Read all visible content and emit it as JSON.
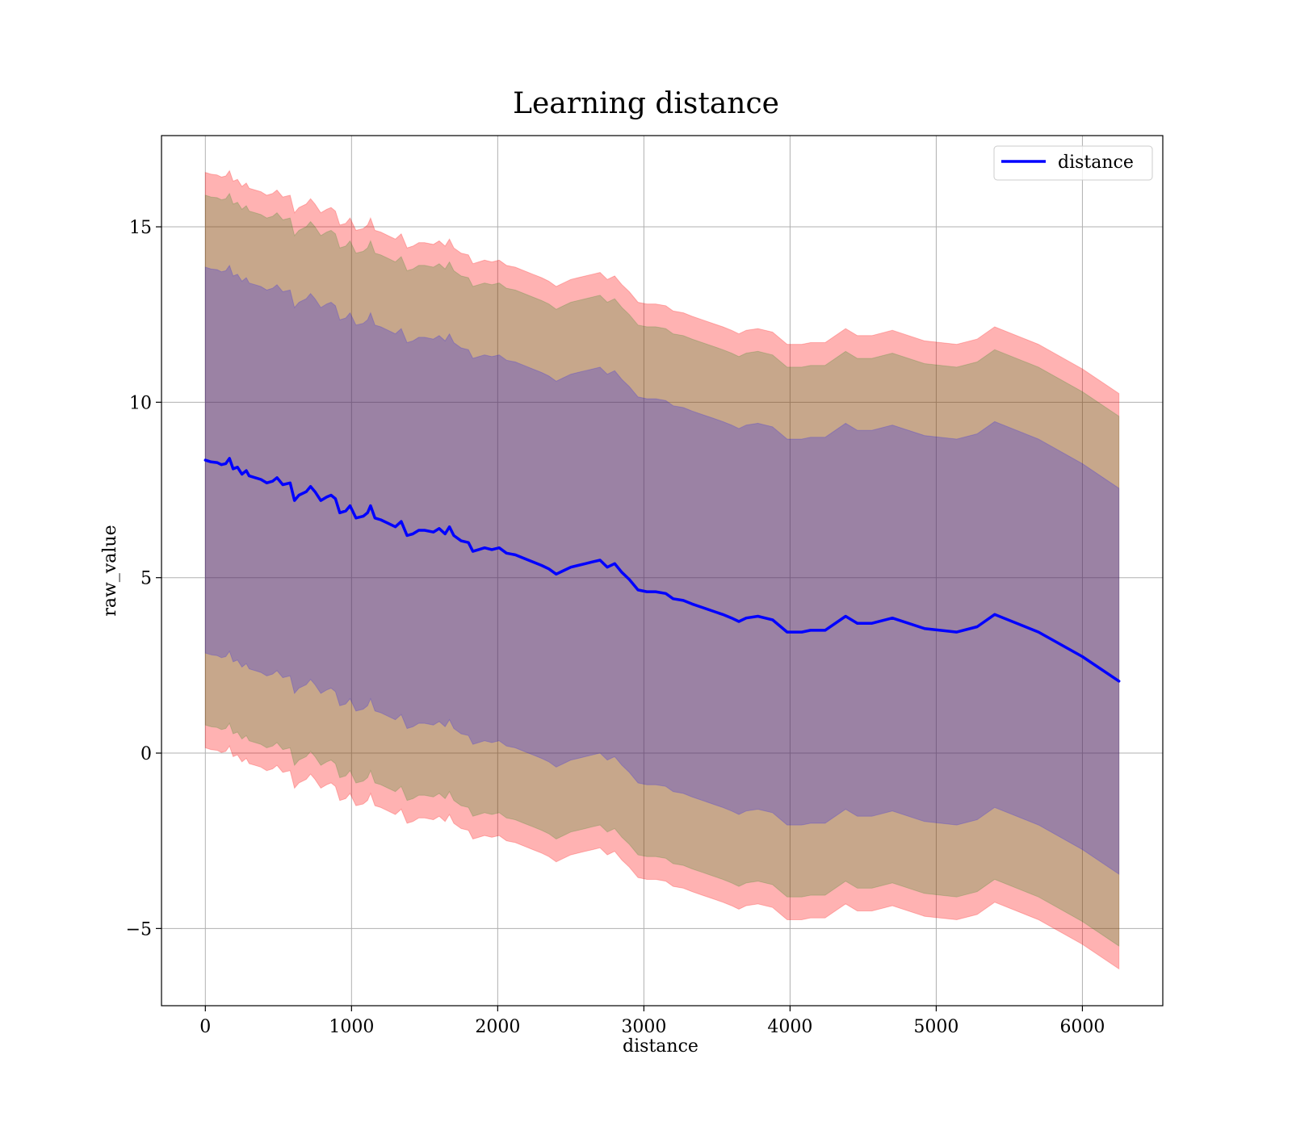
{
  "chart_data": {
    "type": "line",
    "title": "Learning distance",
    "xlabel": "distance",
    "ylabel": "raw_value",
    "xlim": [
      -300,
      6550
    ],
    "ylim": [
      -7.2,
      17.6
    ],
    "xticks": [
      0,
      1000,
      2000,
      3000,
      4000,
      5000,
      6000
    ],
    "yticks": [
      -5,
      0,
      5,
      10,
      15
    ],
    "xtick_labels": [
      "0",
      "1000",
      "2000",
      "3000",
      "4000",
      "5000",
      "6000"
    ],
    "ytick_labels": [
      "−5",
      "0",
      "5",
      "10",
      "15"
    ],
    "grid": true,
    "legend_position": "top-right",
    "series": [
      {
        "name": "distance",
        "color": "#0000ff",
        "points": [
          [
            0,
            8.35
          ],
          [
            40,
            8.3
          ],
          [
            80,
            8.28
          ],
          [
            110,
            8.22
          ],
          [
            140,
            8.25
          ],
          [
            165,
            8.4
          ],
          [
            190,
            8.1
          ],
          [
            220,
            8.15
          ],
          [
            250,
            7.95
          ],
          [
            280,
            8.05
          ],
          [
            300,
            7.9
          ],
          [
            340,
            7.85
          ],
          [
            380,
            7.8
          ],
          [
            420,
            7.7
          ],
          [
            460,
            7.75
          ],
          [
            490,
            7.85
          ],
          [
            530,
            7.65
          ],
          [
            580,
            7.7
          ],
          [
            610,
            7.2
          ],
          [
            640,
            7.35
          ],
          [
            690,
            7.45
          ],
          [
            720,
            7.6
          ],
          [
            750,
            7.45
          ],
          [
            790,
            7.2
          ],
          [
            830,
            7.3
          ],
          [
            860,
            7.35
          ],
          [
            890,
            7.25
          ],
          [
            920,
            6.85
          ],
          [
            960,
            6.9
          ],
          [
            990,
            7.05
          ],
          [
            1030,
            6.7
          ],
          [
            1080,
            6.75
          ],
          [
            1110,
            6.85
          ],
          [
            1130,
            7.05
          ],
          [
            1160,
            6.7
          ],
          [
            1200,
            6.65
          ],
          [
            1250,
            6.55
          ],
          [
            1300,
            6.45
          ],
          [
            1340,
            6.6
          ],
          [
            1380,
            6.2
          ],
          [
            1420,
            6.25
          ],
          [
            1460,
            6.35
          ],
          [
            1500,
            6.35
          ],
          [
            1560,
            6.3
          ],
          [
            1600,
            6.4
          ],
          [
            1640,
            6.25
          ],
          [
            1670,
            6.45
          ],
          [
            1700,
            6.2
          ],
          [
            1750,
            6.05
          ],
          [
            1800,
            6.0
          ],
          [
            1830,
            5.75
          ],
          [
            1870,
            5.8
          ],
          [
            1910,
            5.85
          ],
          [
            1960,
            5.8
          ],
          [
            2010,
            5.85
          ],
          [
            2060,
            5.7
          ],
          [
            2120,
            5.65
          ],
          [
            2180,
            5.55
          ],
          [
            2240,
            5.45
          ],
          [
            2300,
            5.35
          ],
          [
            2350,
            5.25
          ],
          [
            2400,
            5.1
          ],
          [
            2450,
            5.2
          ],
          [
            2500,
            5.3
          ],
          [
            2550,
            5.35
          ],
          [
            2600,
            5.4
          ],
          [
            2650,
            5.45
          ],
          [
            2700,
            5.5
          ],
          [
            2750,
            5.3
          ],
          [
            2800,
            5.4
          ],
          [
            2850,
            5.15
          ],
          [
            2900,
            4.95
          ],
          [
            2960,
            4.65
          ],
          [
            3020,
            4.6
          ],
          [
            3080,
            4.6
          ],
          [
            3150,
            4.55
          ],
          [
            3200,
            4.4
          ],
          [
            3270,
            4.35
          ],
          [
            3330,
            4.25
          ],
          [
            3400,
            4.15
          ],
          [
            3470,
            4.05
          ],
          [
            3540,
            3.95
          ],
          [
            3600,
            3.85
          ],
          [
            3650,
            3.75
          ],
          [
            3700,
            3.85
          ],
          [
            3780,
            3.9
          ],
          [
            3880,
            3.8
          ],
          [
            3980,
            3.45
          ],
          [
            4080,
            3.45
          ],
          [
            4140,
            3.5
          ],
          [
            4240,
            3.5
          ],
          [
            4380,
            3.9
          ],
          [
            4460,
            3.7
          ],
          [
            4560,
            3.7
          ],
          [
            4700,
            3.85
          ],
          [
            4920,
            3.55
          ],
          [
            5140,
            3.45
          ],
          [
            5280,
            3.6
          ],
          [
            5400,
            3.95
          ],
          [
            5700,
            3.45
          ],
          [
            6000,
            2.75
          ],
          [
            6250,
            2.05
          ]
        ]
      }
    ],
    "bands": [
      {
        "label_in_chart": false,
        "color": "#ff0000",
        "opacity": 0.3,
        "offset_lower": -8.2,
        "offset_upper": 8.2
      },
      {
        "label_in_chart": false,
        "color": "#008000",
        "opacity": 0.22,
        "offset_lower": -7.55,
        "offset_upper": 7.55
      },
      {
        "label_in_chart": false,
        "color": "#0000ff",
        "opacity": 0.22,
        "offset_lower": -5.5,
        "offset_upper": 5.5
      }
    ],
    "colors": {
      "line": "#0000ff",
      "grid": "#b0b0b0",
      "axes": "#000000"
    }
  }
}
